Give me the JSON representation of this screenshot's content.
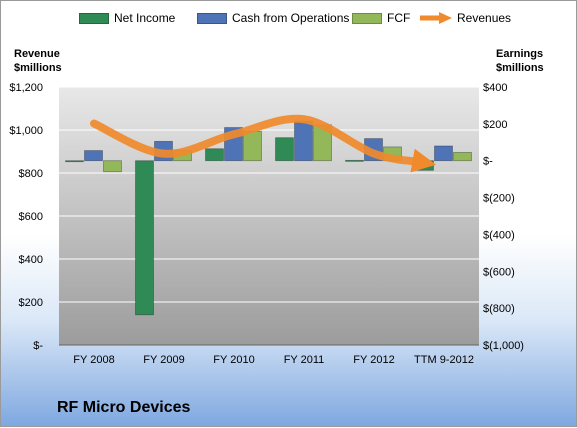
{
  "legend": [
    {
      "name": "Net Income",
      "color": "#2f8a55",
      "kind": "bar"
    },
    {
      "name": "Cash from Operations",
      "color": "#4e73b6",
      "kind": "bar"
    },
    {
      "name": "FCF",
      "color": "#93b85a",
      "kind": "bar"
    },
    {
      "name": "Revenues",
      "color": "#f08a2c",
      "kind": "arrow"
    }
  ],
  "left_axis_title": [
    "Revenue",
    "$millions"
  ],
  "right_axis_title": [
    "Earnings",
    "$millions"
  ],
  "company": "RF Micro Devices",
  "chart_data": {
    "type": "bar",
    "categories": [
      "FY 2008",
      "FY 2009",
      "FY 2010",
      "FY 2011",
      "FY 2012",
      "TTM 9-2012"
    ],
    "series": [
      {
        "name": "Net Income",
        "axis": "right",
        "values": [
          -2,
          -836,
          65,
          125,
          2,
          -52
        ]
      },
      {
        "name": "Cash from Operations",
        "axis": "right",
        "values": [
          55,
          105,
          180,
          215,
          120,
          80
        ]
      },
      {
        "name": "FCF",
        "axis": "right",
        "values": [
          -60,
          55,
          160,
          195,
          75,
          45
        ]
      },
      {
        "name": "Revenues",
        "axis": "left",
        "type": "line",
        "values": [
          1030,
          890,
          980,
          1050,
          890,
          850
        ]
      }
    ],
    "left_axis": {
      "label": "Revenue $millions",
      "ticks": [
        "$1,200",
        "$1,000",
        "$800",
        "$600",
        "$400",
        "$200",
        "$-"
      ],
      "ylim": [
        0,
        1200
      ]
    },
    "right_axis": {
      "label": "Earnings $millions",
      "ticks": [
        "$400",
        "$200",
        "$-",
        "$(200)",
        "$(400)",
        "$(600)",
        "$(800)",
        "$(1,000)"
      ],
      "ylim": [
        -1000,
        400
      ]
    },
    "grid": true,
    "legend_position": "top"
  }
}
